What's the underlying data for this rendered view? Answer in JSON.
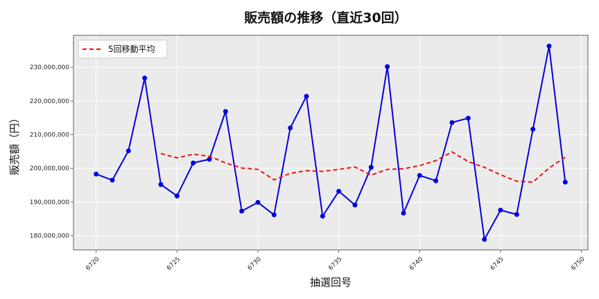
{
  "chart_data": {
    "type": "line",
    "title": "販売額の推移（直近30回）",
    "xlabel": "抽選回号",
    "ylabel": "販売額（円）",
    "x": [
      6720,
      6721,
      6722,
      6723,
      6724,
      6725,
      6726,
      6727,
      6728,
      6729,
      6730,
      6731,
      6732,
      6733,
      6734,
      6735,
      6736,
      6737,
      6738,
      6739,
      6740,
      6741,
      6742,
      6743,
      6744,
      6745,
      6746,
      6747,
      6748,
      6749
    ],
    "series": [
      {
        "name": "",
        "color": "#0000dd",
        "style": "solid-markers",
        "values": [
          198300000,
          196500000,
          205200000,
          226800000,
          195200000,
          191800000,
          201600000,
          202700000,
          216900000,
          187300000,
          189900000,
          186200000,
          212000000,
          221400000,
          185800000,
          193200000,
          189100000,
          200300000,
          230200000,
          186700000,
          197900000,
          196300000,
          213600000,
          214900000,
          178900000,
          187600000,
          186300000,
          211600000,
          236300000,
          195900000
        ]
      },
      {
        "name": "5回移動平均",
        "color": "#ee1111",
        "style": "dashed",
        "values": [
          null,
          null,
          null,
          null,
          204400000,
          203100000,
          204200000,
          203600000,
          201600000,
          200100000,
          199700000,
          196600000,
          198500000,
          199300000,
          199100000,
          199700000,
          200400000,
          198000000,
          199700000,
          199900000,
          200800000,
          202300000,
          204900000,
          202000000,
          200300000,
          198100000,
          196200000,
          195900000,
          200100000,
          203300000
        ]
      }
    ],
    "xlim": [
      6718.6,
      6750.4
    ],
    "ylim": [
      175800000,
      239500000
    ],
    "xticks": [
      6720,
      6725,
      6730,
      6735,
      6740,
      6745,
      6750
    ],
    "yticks": [
      180000000,
      190000000,
      200000000,
      210000000,
      220000000,
      230000000
    ],
    "ytick_labels": [
      "180,000,000",
      "190,000,000",
      "200,000,000",
      "210,000,000",
      "220,000,000",
      "230,000,000"
    ],
    "grid": true,
    "legend_position": "top-left",
    "colors": {
      "plot_background": "#ebebeb",
      "grid": "#ffffff"
    }
  }
}
